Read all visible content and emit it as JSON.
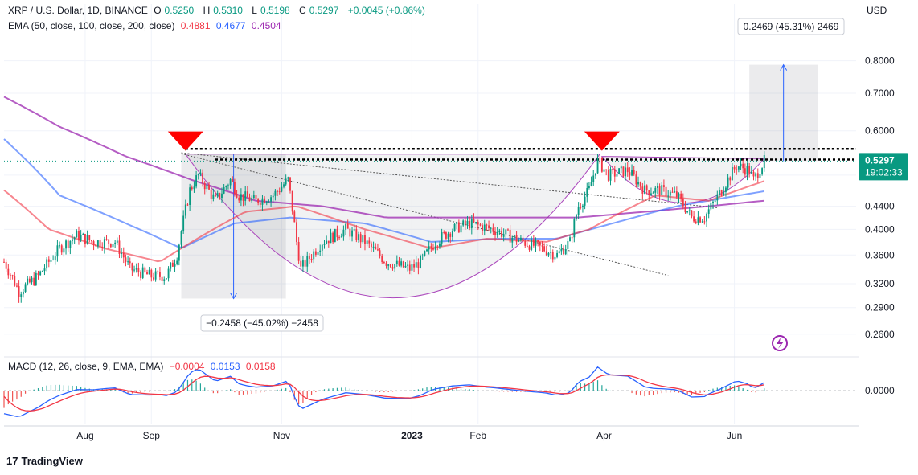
{
  "header": {
    "symbol": "XRP / U.S. Dollar, 1D, BINANCE",
    "o_label": "O",
    "o": "0.5250",
    "h_label": "H",
    "h": "0.5310",
    "l_label": "L",
    "l": "0.5198",
    "c_label": "C",
    "c": "0.5297",
    "change": "+0.0045 (+0.86%)",
    "ema_label": "EMA (50, close, 100, close, 200, close)",
    "ema50": "0.4881",
    "ema100": "0.4677",
    "ema200": "0.4504",
    "macd_label": "MACD (12, 26, close, 9, EMA, EMA)",
    "macd_hist": "−0.0004",
    "macd_line": "0.0153",
    "macd_signal": "0.0158"
  },
  "currency": "USD",
  "price_badge": {
    "price": "0.5297",
    "countdown": "19:02:33"
  },
  "measure_up": "0.2469 (45.31%) 2469",
  "measure_down": "−0.2458 (−45.02%) −2458",
  "brand": "TradingView",
  "colors": {
    "up": "#089981",
    "down": "#f23645",
    "ema50": "#f23645",
    "ema100": "#2962ff",
    "ema200": "#9c27b0",
    "macd": "#2962ff",
    "signal": "#f23645",
    "bg": "#ffffff"
  },
  "chart_data": {
    "type": "candlestick",
    "title": "XRP / U.S. Dollar, 1D, BINANCE",
    "y_scale": "log",
    "ylim": [
      0.24,
      0.9
    ],
    "y_ticks": [
      "0.8000",
      "0.7000",
      "0.6000",
      "0.5000",
      "0.4400",
      "0.4000",
      "0.3600",
      "0.3200",
      "0.2900",
      "0.2600"
    ],
    "x_ticks": [
      "Aug",
      "Sep",
      "Nov",
      "2023",
      "Feb",
      "Apr",
      "Jun"
    ],
    "x_tick_dates": [
      "2022-08-01",
      "2022-09-01",
      "2022-11-01",
      "2023-01-01",
      "2023-02-01",
      "2023-04-01",
      "2023-06-01"
    ],
    "x_range": [
      "2022-06-24",
      "2023-07-28"
    ],
    "price_keypoints": [
      [
        "2022-06-24",
        0.35
      ],
      [
        "2022-07-01",
        0.31
      ],
      [
        "2022-07-10",
        0.33
      ],
      [
        "2022-07-20",
        0.37
      ],
      [
        "2022-07-28",
        0.39
      ],
      [
        "2022-08-05",
        0.38
      ],
      [
        "2022-08-15",
        0.38
      ],
      [
        "2022-08-22",
        0.34
      ],
      [
        "2022-09-01",
        0.33
      ],
      [
        "2022-09-08",
        0.33
      ],
      [
        "2022-09-13",
        0.36
      ],
      [
        "2022-09-19",
        0.47
      ],
      [
        "2022-09-23",
        0.5
      ],
      [
        "2022-10-01",
        0.45
      ],
      [
        "2022-10-08",
        0.49
      ],
      [
        "2022-10-12",
        0.46
      ],
      [
        "2022-10-20",
        0.45
      ],
      [
        "2022-10-28",
        0.46
      ],
      [
        "2022-11-04",
        0.49
      ],
      [
        "2022-11-08",
        0.38
      ],
      [
        "2022-11-10",
        0.34
      ],
      [
        "2022-11-20",
        0.38
      ],
      [
        "2022-12-01",
        0.4
      ],
      [
        "2022-12-10",
        0.38
      ],
      [
        "2022-12-20",
        0.35
      ],
      [
        "2022-12-31",
        0.34
      ],
      [
        "2023-01-05",
        0.35
      ],
      [
        "2023-01-12",
        0.38
      ],
      [
        "2023-01-20",
        0.4
      ],
      [
        "2023-01-28",
        0.41
      ],
      [
        "2023-02-08",
        0.4
      ],
      [
        "2023-02-15",
        0.39
      ],
      [
        "2023-02-22",
        0.38
      ],
      [
        "2023-03-03",
        0.37
      ],
      [
        "2023-03-10",
        0.36
      ],
      [
        "2023-03-16",
        0.38
      ],
      [
        "2023-03-20",
        0.44
      ],
      [
        "2023-03-25",
        0.47
      ],
      [
        "2023-03-29",
        0.53
      ],
      [
        "2023-04-03",
        0.5
      ],
      [
        "2023-04-12",
        0.51
      ],
      [
        "2023-04-20",
        0.47
      ],
      [
        "2023-04-27",
        0.47
      ],
      [
        "2023-05-05",
        0.46
      ],
      [
        "2023-05-12",
        0.42
      ],
      [
        "2023-05-18",
        0.42
      ],
      [
        "2023-05-26",
        0.47
      ],
      [
        "2023-06-02",
        0.52
      ],
      [
        "2023-06-08",
        0.51
      ],
      [
        "2023-06-10",
        0.49
      ],
      [
        "2023-06-15",
        0.53
      ]
    ],
    "ema50_keypoints": [
      [
        "2022-06-24",
        0.47
      ],
      [
        "2022-07-15",
        0.4
      ],
      [
        "2022-08-10",
        0.37
      ],
      [
        "2022-09-05",
        0.35
      ],
      [
        "2022-09-20",
        0.38
      ],
      [
        "2022-10-15",
        0.43
      ],
      [
        "2022-11-08",
        0.44
      ],
      [
        "2022-12-10",
        0.4
      ],
      [
        "2023-01-10",
        0.37
      ],
      [
        "2023-02-05",
        0.385
      ],
      [
        "2023-03-05",
        0.38
      ],
      [
        "2023-03-25",
        0.4
      ],
      [
        "2023-04-25",
        0.46
      ],
      [
        "2023-05-20",
        0.45
      ],
      [
        "2023-06-15",
        0.488
      ]
    ],
    "ema100_keypoints": [
      [
        "2022-06-24",
        0.58
      ],
      [
        "2022-07-20",
        0.46
      ],
      [
        "2022-08-20",
        0.41
      ],
      [
        "2022-09-15",
        0.37
      ],
      [
        "2022-10-10",
        0.41
      ],
      [
        "2022-11-05",
        0.42
      ],
      [
        "2022-12-10",
        0.41
      ],
      [
        "2023-01-10",
        0.38
      ],
      [
        "2023-02-10",
        0.385
      ],
      [
        "2023-03-10",
        0.385
      ],
      [
        "2023-04-05",
        0.41
      ],
      [
        "2023-05-05",
        0.44
      ],
      [
        "2023-06-15",
        0.468
      ]
    ],
    "ema200_keypoints": [
      [
        "2022-06-24",
        0.69
      ],
      [
        "2022-07-20",
        0.61
      ],
      [
        "2022-08-20",
        0.54
      ],
      [
        "2022-09-20",
        0.49
      ],
      [
        "2022-10-20",
        0.45
      ],
      [
        "2022-11-20",
        0.44
      ],
      [
        "2022-12-20",
        0.42
      ],
      [
        "2023-01-20",
        0.42
      ],
      [
        "2023-02-20",
        0.42
      ],
      [
        "2023-03-20",
        0.42
      ],
      [
        "2023-04-20",
        0.43
      ],
      [
        "2023-05-20",
        0.44
      ],
      [
        "2023-06-15",
        0.45
      ]
    ],
    "resistance_levels": [
      0.557,
      0.533
    ],
    "annotation_levels": [
      0.545,
      0.5297
    ]
  }
}
